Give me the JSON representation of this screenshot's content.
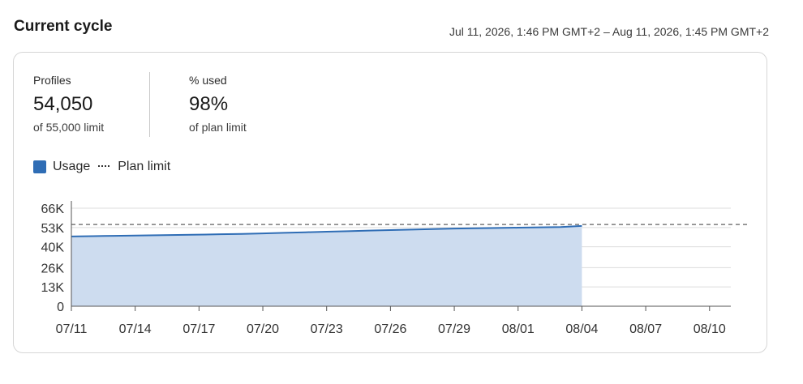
{
  "header": {
    "title": "Current cycle",
    "date_range": "Jul 11, 2026, 1:46 PM GMT+2 – Aug 11, 2026, 1:45 PM GMT+2"
  },
  "stats": {
    "profiles": {
      "label": "Profiles",
      "value": "54,050",
      "sub": "of 55,000 limit"
    },
    "percent_used": {
      "label": "% used",
      "value": "98%",
      "sub": "of plan limit"
    }
  },
  "legend": {
    "usage_label": "Usage",
    "plan_limit_label": "Plan limit"
  },
  "colors": {
    "usage_fill": "#cddcef",
    "usage_line": "#2f6db5",
    "limit_line": "#7a7a7a",
    "grid": "#dcdcdc"
  },
  "chart_data": {
    "type": "area",
    "x": [
      "07/11",
      "07/12",
      "07/13",
      "07/14",
      "07/15",
      "07/16",
      "07/17",
      "07/18",
      "07/19",
      "07/20",
      "07/21",
      "07/22",
      "07/23",
      "07/24",
      "07/25",
      "07/26",
      "07/27",
      "07/28",
      "07/29",
      "07/30",
      "07/31",
      "08/01",
      "08/02",
      "08/03",
      "08/04"
    ],
    "series": [
      {
        "name": "Usage",
        "values": [
          47000,
          47200,
          47400,
          47600,
          47800,
          48000,
          48200,
          48450,
          48700,
          49000,
          49400,
          49800,
          50200,
          50550,
          50900,
          51250,
          51600,
          51950,
          52300,
          52500,
          52700,
          52900,
          53100,
          53300,
          54050
        ]
      }
    ],
    "plan_limit": 55000,
    "x_ticks": [
      "07/11",
      "07/14",
      "07/17",
      "07/20",
      "07/23",
      "07/26",
      "07/29",
      "08/01",
      "08/04",
      "08/07",
      "08/10"
    ],
    "y_ticks": [
      "0",
      "13K",
      "26K",
      "40K",
      "53K",
      "66K"
    ],
    "y_tick_values": [
      0,
      13000,
      26000,
      40000,
      53000,
      66000
    ],
    "ylim": [
      0,
      66000
    ],
    "x_range": [
      "07/11",
      "08/11"
    ],
    "grid": true,
    "legend_placement": "top-left"
  }
}
